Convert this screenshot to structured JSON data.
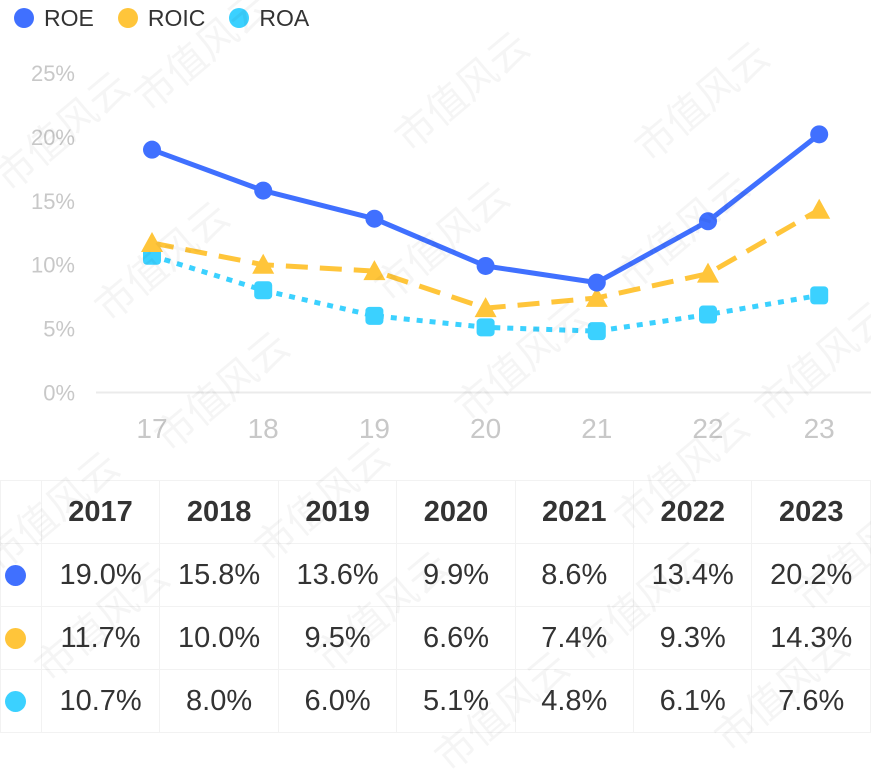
{
  "chart_data": {
    "type": "line",
    "title": "",
    "xlabel": "",
    "ylabel": "",
    "x": [
      "17",
      "18",
      "19",
      "20",
      "21",
      "22",
      "23"
    ],
    "ylim": [
      0,
      25
    ],
    "yticks": [
      "0%",
      "5%",
      "10%",
      "15%",
      "20%",
      "25%"
    ],
    "ytick_values": [
      0,
      5,
      10,
      15,
      20,
      25
    ],
    "grid": false,
    "legend_position": "top-left",
    "series": [
      {
        "name": "ROE",
        "color": "#4070FF",
        "line_style": "solid",
        "marker": "circle",
        "values": [
          19.0,
          15.8,
          13.6,
          9.9,
          8.6,
          13.4,
          20.2
        ]
      },
      {
        "name": "ROIC",
        "color": "#FFC53A",
        "line_style": "dashed",
        "marker": "triangle",
        "values": [
          11.7,
          10.0,
          9.5,
          6.6,
          7.4,
          9.3,
          14.3
        ]
      },
      {
        "name": "ROA",
        "color": "#3BD1FF",
        "line_style": "dotted",
        "marker": "square",
        "values": [
          10.7,
          8.0,
          6.0,
          5.1,
          4.8,
          6.1,
          7.6
        ]
      }
    ]
  },
  "legend": [
    {
      "label": "ROE",
      "color": "#4070FF"
    },
    {
      "label": "ROIC",
      "color": "#FFC53A"
    },
    {
      "label": "ROA",
      "color": "#3BD1FF"
    }
  ],
  "table": {
    "headers": [
      "2017",
      "2018",
      "2019",
      "2020",
      "2021",
      "2022",
      "2023"
    ],
    "rows": [
      {
        "series": "ROE",
        "color": "#4070FF",
        "cells": [
          "19.0%",
          "15.8%",
          "13.6%",
          "9.9%",
          "8.6%",
          "13.4%",
          "20.2%"
        ]
      },
      {
        "series": "ROIC",
        "color": "#FFC53A",
        "cells": [
          "11.7%",
          "10.0%",
          "9.5%",
          "6.6%",
          "7.4%",
          "9.3%",
          "14.3%"
        ]
      },
      {
        "series": "ROA",
        "color": "#3BD1FF",
        "cells": [
          "10.7%",
          "8.0%",
          "6.0%",
          "5.1%",
          "4.8%",
          "6.1%",
          "7.6%"
        ]
      }
    ]
  },
  "watermark_text": "市值风云"
}
